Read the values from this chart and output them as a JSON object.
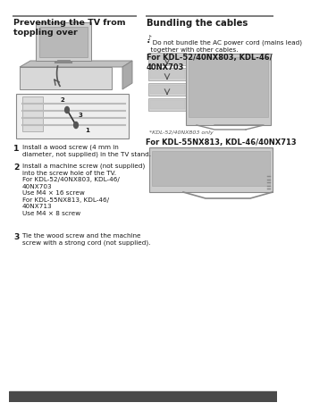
{
  "page_bg": "#ffffff",
  "left_title": "Preventing the TV from\ntoppling over",
  "right_title": "Bundling the cables",
  "note_symbol": "♪",
  "note_bullet": "• Do not bundle the AC power cord (mains lead)\n  together with other cables.",
  "bold_header1": "For KDL-52/40NX803, KDL-46/\n40NX703",
  "bold_header2": "For KDL-55NX813, KDL-46/40NX713",
  "caption": "*KDL-52/40NX803 only",
  "step1_num": "1",
  "step1_text": "Install a wood screw (4 mm in\ndiameter, not supplied) in the TV stand.",
  "step2_num": "2",
  "step2_text": "Install a machine screw (not supplied)\ninto the screw hole of the TV.\nFor KDL-52/40NX803, KDL-46/\n40NX703\nUse M4 × 16 screw\nFor KDL-55NX813, KDL-46/\n40NX713\nUse M4 × 8 screw",
  "step3_num": "3",
  "step3_text": "Tie the wood screw and the machine\nscrew with a strong cord (not supplied).",
  "divider_color": "#666666",
  "text_dark": "#1a1a1a",
  "text_gray": "#555555",
  "img_bg": "#cccccc",
  "img_dark": "#999999",
  "img_light": "#e8e8e8",
  "title_fs": 6.8,
  "body_fs": 5.2,
  "bold_fs": 6.0,
  "caption_fs": 4.5
}
